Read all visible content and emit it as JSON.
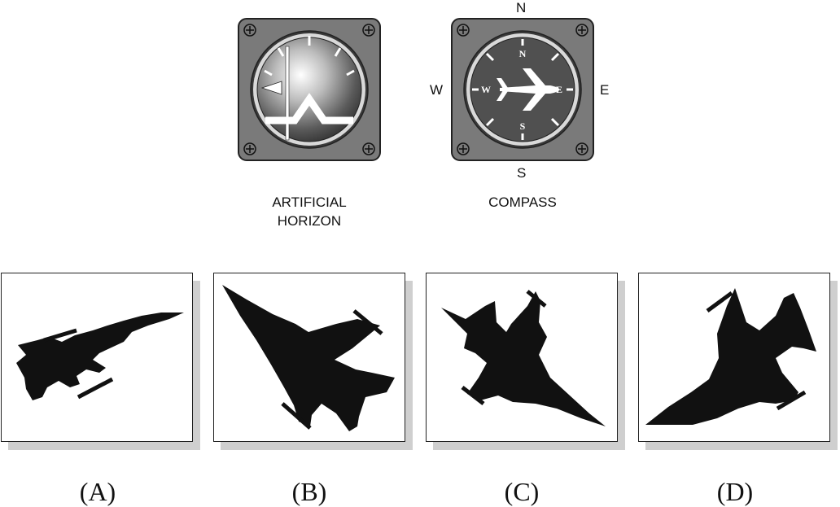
{
  "instruments": {
    "horizon": {
      "label_line1": "ARTIFICIAL",
      "label_line2": "HORIZON"
    },
    "compass": {
      "label": "COMPASS",
      "outer_n": "N",
      "outer_s": "S",
      "outer_e": "E",
      "outer_w": "W",
      "dial_n": "N",
      "dial_s": "S",
      "dial_e": "E",
      "dial_w": "W"
    }
  },
  "options": [
    {
      "label": "(A)"
    },
    {
      "label": "(B)"
    },
    {
      "label": "(C)"
    },
    {
      "label": "(D)"
    }
  ],
  "colors": {
    "instrument_body": "#7a7a7a",
    "dial_dark": "#505050",
    "silhouette": "#111111",
    "panel_shadow": "#cfcfcf"
  }
}
